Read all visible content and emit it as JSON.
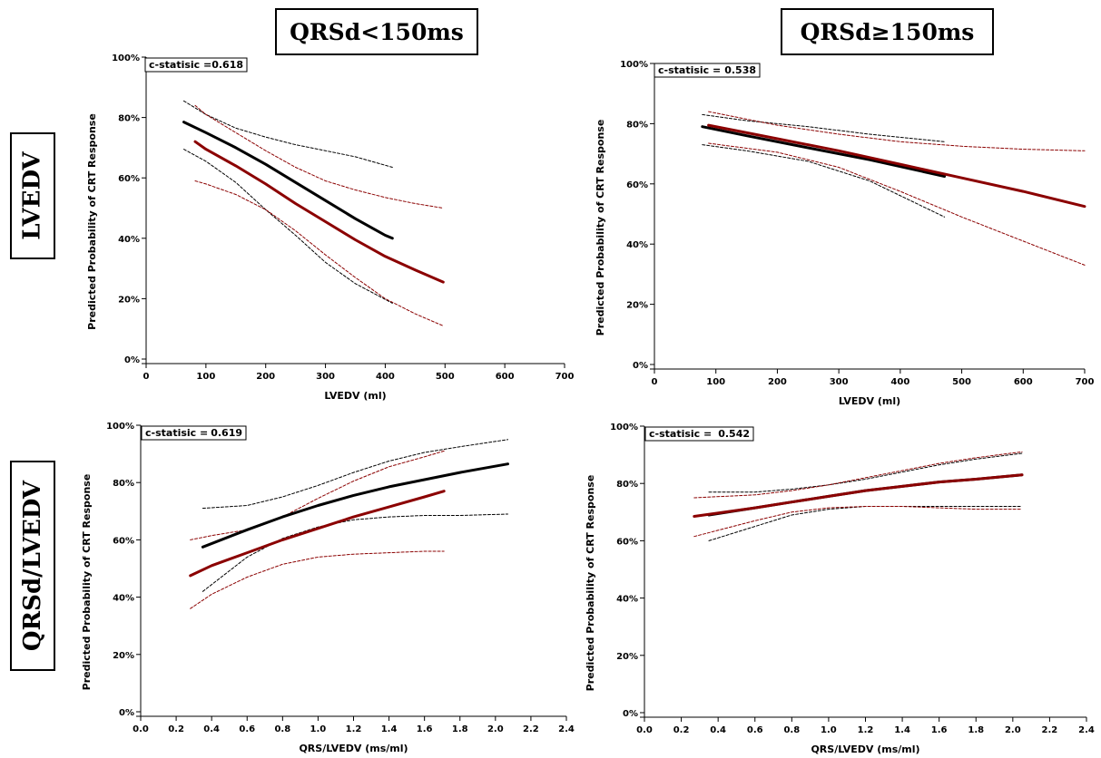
{
  "headers": {
    "col_left": "QRSd<150ms",
    "col_right": "QRSd≥150ms",
    "row_top": "LVEDV",
    "row_bottom": "QRSd/LVEDV"
  },
  "colors": {
    "black_line": "#000000",
    "red_line": "#8b0000"
  },
  "chart_data": [
    {
      "type": "line",
      "xlabel": "LVEDV (ml)",
      "ylabel": "Predicted Probability of CRT Response",
      "xlim": [
        0,
        700
      ],
      "ylim": [
        0,
        100
      ],
      "x_ticks": [
        "0",
        "100",
        "200",
        "300",
        "400",
        "500",
        "600",
        "700"
      ],
      "y_ticks": [
        "0%",
        "20%",
        "40%",
        "60%",
        "80%",
        "100%"
      ],
      "annotation": {
        "label": "c-statisic =",
        "value": "0.618"
      },
      "series": [
        {
          "color": "black",
          "style": "solid",
          "x": [
            63,
            100,
            150,
            200,
            250,
            300,
            350,
            400,
            412
          ],
          "y": [
            78.5,
            75,
            70,
            64.5,
            58.5,
            52.5,
            46.5,
            41,
            40
          ]
        },
        {
          "color": "black",
          "style": "dashed",
          "x": [
            63,
            100,
            150,
            200,
            250,
            300,
            350,
            412
          ],
          "y": [
            85.5,
            81,
            76.5,
            73.5,
            71,
            69,
            67,
            63.5
          ]
        },
        {
          "color": "black",
          "style": "dashed",
          "x": [
            63,
            100,
            150,
            200,
            250,
            300,
            350,
            412
          ],
          "y": [
            69.5,
            65.5,
            58.5,
            49.5,
            41,
            32,
            25,
            18.5
          ]
        },
        {
          "color": "red",
          "style": "solid",
          "x": [
            82,
            100,
            150,
            200,
            250,
            300,
            350,
            400,
            450,
            497
          ],
          "y": [
            72,
            69.5,
            64,
            58,
            51.5,
            45.5,
            39.5,
            34,
            29.5,
            25.5
          ]
        },
        {
          "color": "red",
          "style": "dashed",
          "x": [
            82,
            100,
            150,
            200,
            250,
            300,
            350,
            400,
            450,
            497
          ],
          "y": [
            84,
            81,
            75,
            69,
            63.5,
            59,
            56,
            53.5,
            51.5,
            50
          ]
        },
        {
          "color": "red",
          "style": "dashed",
          "x": [
            82,
            100,
            150,
            200,
            250,
            300,
            350,
            400,
            450,
            497
          ],
          "y": [
            59,
            58,
            54.5,
            49.5,
            42.5,
            34.5,
            27,
            20,
            15,
            11
          ]
        }
      ]
    },
    {
      "type": "line",
      "xlabel": "LVEDV (ml)",
      "ylabel": "Predicted Probability of CRT Response",
      "xlim": [
        0,
        700
      ],
      "ylim": [
        0,
        100
      ],
      "x_ticks": [
        "0",
        "100",
        "200",
        "300",
        "400",
        "500",
        "600",
        "700"
      ],
      "y_ticks": [
        "0%",
        "20%",
        "40%",
        "60%",
        "80%",
        "100%"
      ],
      "annotation": {
        "label": "c-statisic =",
        "value": "0.538"
      },
      "series": [
        {
          "color": "black",
          "style": "solid",
          "x": [
            78,
            150,
            250,
            350,
            472
          ],
          "y": [
            79,
            76,
            72,
            68,
            62.5
          ]
        },
        {
          "color": "black",
          "style": "dashed",
          "x": [
            78,
            150,
            250,
            350,
            472
          ],
          "y": [
            83,
            81,
            79,
            76.5,
            74
          ]
        },
        {
          "color": "black",
          "style": "dashed",
          "x": [
            78,
            150,
            250,
            350,
            472
          ],
          "y": [
            73,
            71,
            67.5,
            61,
            49
          ]
        },
        {
          "color": "red",
          "style": "solid",
          "x": [
            88,
            200,
            300,
            400,
            500,
            600,
            700
          ],
          "y": [
            79.5,
            75,
            71,
            66.5,
            62,
            57.5,
            52.5
          ]
        },
        {
          "color": "red",
          "style": "dashed",
          "x": [
            88,
            200,
            300,
            400,
            500,
            600,
            700
          ],
          "y": [
            84,
            79.5,
            76.5,
            74,
            72.5,
            71.5,
            71
          ]
        },
        {
          "color": "red",
          "style": "dashed",
          "x": [
            88,
            200,
            300,
            400,
            500,
            600,
            700
          ],
          "y": [
            73.5,
            70.5,
            65.5,
            57.5,
            49,
            41,
            33
          ]
        }
      ]
    },
    {
      "type": "line",
      "xlabel": "QRS/LVEDV (ms/ml)",
      "ylabel": "Predicted Probability of CRT Response",
      "xlim": [
        0,
        2.4
      ],
      "ylim": [
        0,
        100
      ],
      "x_ticks": [
        "0.0",
        "0.2",
        "0.4",
        "0.6",
        "0.8",
        "1.0",
        "1.2",
        "1.4",
        "1.6",
        "1.8",
        "2.0",
        "2.2",
        "2.4"
      ],
      "y_ticks": [
        "0%",
        "20%",
        "40%",
        "60%",
        "80%",
        "100%"
      ],
      "annotation": {
        "label": "c-statisic =",
        "value": "0.619"
      },
      "series": [
        {
          "color": "black",
          "style": "solid",
          "x": [
            0.35,
            0.6,
            0.8,
            1.0,
            1.2,
            1.4,
            1.6,
            1.8,
            2.07
          ],
          "y": [
            57.5,
            63.5,
            68,
            72,
            75.5,
            78.5,
            81,
            83.5,
            86.5
          ]
        },
        {
          "color": "black",
          "style": "dashed",
          "x": [
            0.35,
            0.6,
            0.8,
            1.0,
            1.2,
            1.4,
            1.6,
            1.8,
            2.07
          ],
          "y": [
            71,
            72,
            75,
            79,
            83.5,
            87.5,
            90.5,
            92.5,
            95
          ]
        },
        {
          "color": "black",
          "style": "dashed",
          "x": [
            0.35,
            0.6,
            0.8,
            1.0,
            1.2,
            1.4,
            1.6,
            1.8,
            2.07
          ],
          "y": [
            42,
            54,
            60.5,
            64.5,
            67,
            68,
            68.5,
            68.5,
            69
          ]
        },
        {
          "color": "red",
          "style": "solid",
          "x": [
            0.28,
            0.4,
            0.6,
            0.8,
            1.0,
            1.2,
            1.4,
            1.6,
            1.71
          ],
          "y": [
            47.5,
            51,
            55.5,
            60,
            64,
            68,
            71.5,
            75,
            77
          ]
        },
        {
          "color": "red",
          "style": "dashed",
          "x": [
            0.28,
            0.4,
            0.6,
            0.8,
            1.0,
            1.2,
            1.4,
            1.6,
            1.71
          ],
          "y": [
            60,
            61.5,
            63.5,
            68,
            74.5,
            80.5,
            85.5,
            89,
            91
          ]
        },
        {
          "color": "red",
          "style": "dashed",
          "x": [
            0.28,
            0.4,
            0.6,
            0.8,
            1.0,
            1.2,
            1.4,
            1.6,
            1.71
          ],
          "y": [
            36,
            41,
            47,
            51.5,
            54,
            55,
            55.5,
            56,
            56
          ]
        }
      ]
    },
    {
      "type": "line",
      "xlabel": "QRS/LVEDV (ms/ml)",
      "ylabel": "Predicted Probability of CRT Response",
      "xlim": [
        0,
        2.4
      ],
      "ylim": [
        0,
        100
      ],
      "x_ticks": [
        "0.0",
        "0.2",
        "0.4",
        "0.6",
        "0.8",
        "1.0",
        "1.2",
        "1.4",
        "1.6",
        "1.8",
        "2.0",
        "2.2",
        "2.4"
      ],
      "y_ticks": [
        "0%",
        "20%",
        "40%",
        "60%",
        "80%",
        "100%"
      ],
      "annotation": {
        "label": "c-statisic =",
        "value": "0.542"
      },
      "series": [
        {
          "color": "black",
          "style": "solid",
          "x": [
            0.35,
            0.6,
            0.8,
            1.0,
            1.2,
            1.4,
            1.6,
            1.8,
            2.05
          ],
          "y": [
            69,
            71.5,
            73.5,
            75.5,
            77.5,
            79,
            80.5,
            81.5,
            83
          ]
        },
        {
          "color": "black",
          "style": "dashed",
          "x": [
            0.35,
            0.6,
            0.8,
            1.0,
            1.2,
            1.4,
            1.6,
            1.8,
            2.05
          ],
          "y": [
            77,
            77,
            78,
            79.5,
            81.5,
            84,
            86.5,
            88.5,
            90.5
          ]
        },
        {
          "color": "black",
          "style": "dashed",
          "x": [
            0.35,
            0.6,
            0.8,
            1.0,
            1.2,
            1.4,
            1.6,
            1.8,
            2.05
          ],
          "y": [
            60,
            65,
            69,
            71,
            72,
            72,
            72,
            72,
            72
          ]
        },
        {
          "color": "red",
          "style": "solid",
          "x": [
            0.27,
            0.6,
            0.8,
            1.0,
            1.2,
            1.4,
            1.6,
            1.8,
            2.05
          ],
          "y": [
            68.5,
            71.5,
            73.5,
            75.5,
            77.5,
            79,
            80.5,
            81.5,
            83
          ]
        },
        {
          "color": "red",
          "style": "dashed",
          "x": [
            0.27,
            0.6,
            0.8,
            1.0,
            1.2,
            1.4,
            1.6,
            1.8,
            2.05
          ],
          "y": [
            75,
            76,
            77.5,
            79.5,
            82,
            84.5,
            87,
            89,
            91
          ]
        },
        {
          "color": "red",
          "style": "dashed",
          "x": [
            0.27,
            0.6,
            0.8,
            1.0,
            1.2,
            1.4,
            1.6,
            1.8,
            2.05
          ],
          "y": [
            61.5,
            67,
            70,
            71.5,
            72,
            72,
            71.5,
            71,
            71
          ]
        }
      ]
    }
  ]
}
